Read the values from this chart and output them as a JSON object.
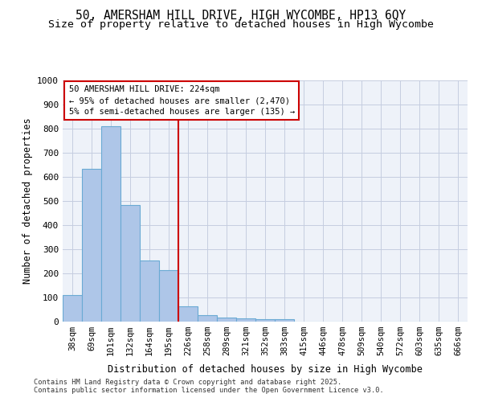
{
  "title1": "50, AMERSHAM HILL DRIVE, HIGH WYCOMBE, HP13 6QY",
  "title2": "Size of property relative to detached houses in High Wycombe",
  "xlabel": "Distribution of detached houses by size in High Wycombe",
  "ylabel": "Number of detached properties",
  "footer": "Contains HM Land Registry data © Crown copyright and database right 2025.\nContains public sector information licensed under the Open Government Licence v3.0.",
  "categories": [
    "38sqm",
    "69sqm",
    "101sqm",
    "132sqm",
    "164sqm",
    "195sqm",
    "226sqm",
    "258sqm",
    "289sqm",
    "321sqm",
    "352sqm",
    "383sqm",
    "415sqm",
    "446sqm",
    "478sqm",
    "509sqm",
    "540sqm",
    "572sqm",
    "603sqm",
    "635sqm",
    "666sqm"
  ],
  "values": [
    110,
    635,
    810,
    485,
    255,
    213,
    63,
    27,
    18,
    13,
    10,
    10,
    0,
    0,
    0,
    0,
    0,
    0,
    0,
    0,
    0
  ],
  "bar_color": "#aec6e8",
  "bar_edge_color": "#6aaad4",
  "vline_color": "#cc0000",
  "vline_x": 5.5,
  "annotation_text": "50 AMERSHAM HILL DRIVE: 224sqm\n← 95% of detached houses are smaller (2,470)\n5% of semi-detached houses are larger (135) →",
  "bg_color": "#eef2f9",
  "grid_color": "#c5cde0",
  "ylim": [
    0,
    1000
  ],
  "yticks": [
    0,
    100,
    200,
    300,
    400,
    500,
    600,
    700,
    800,
    900,
    1000
  ]
}
